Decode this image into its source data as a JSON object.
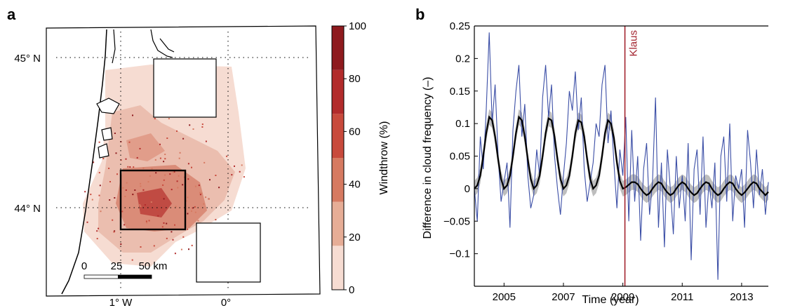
{
  "panel_a": {
    "letter": "a",
    "lat_labels": [
      "45° N",
      "44° N"
    ],
    "lon_labels": [
      "1° W",
      "0°"
    ],
    "scale_labels": [
      "0",
      "25",
      "50 km"
    ],
    "colorbar_ticks": [
      "0",
      "20",
      "40",
      "60",
      "80",
      "100"
    ],
    "colorbar_label": "Windthrow (%)",
    "colorbar_colors": [
      "#f6dcd2",
      "#e6ad96",
      "#d67a61",
      "#c84a3c",
      "#b22b2b",
      "#8e1a1e"
    ]
  },
  "panel_b": {
    "letter": "b",
    "event_label": "Klaus"
  },
  "chart_data": {
    "type": "line",
    "xlabel": "Time (year)",
    "ylabel": "Difference in cloud frequency (–)",
    "xlim": [
      2004,
      2013.9
    ],
    "ylim": [
      -0.15,
      0.25
    ],
    "xticks": [
      2005,
      2007,
      2009,
      2011,
      2013
    ],
    "xtick_labels": [
      "2005",
      "2007",
      "2009",
      "2011",
      "2013"
    ],
    "yticks": [
      -0.1,
      -0.05,
      0,
      0.05,
      0.1,
      0.15,
      0.2,
      0.25
    ],
    "ytick_labels": [
      "−0.1",
      "−0.05",
      "0",
      "0.05",
      "0.1",
      "0.15",
      "0.2",
      "0.25"
    ],
    "event": {
      "x": 2009.07,
      "label": "Klaus",
      "color": "#a3242f"
    },
    "series": [
      {
        "color": "#3b4ea6",
        "kind": "observed",
        "x": [
          2004.0,
          2004.1,
          2004.2,
          2004.3,
          2004.4,
          2004.5,
          2004.6,
          2004.7,
          2004.8,
          2004.9,
          2005.0,
          2005.1,
          2005.2,
          2005.3,
          2005.4,
          2005.5,
          2005.6,
          2005.7,
          2005.8,
          2005.9,
          2006.0,
          2006.1,
          2006.2,
          2006.3,
          2006.4,
          2006.5,
          2006.6,
          2006.7,
          2006.8,
          2006.9,
          2007.0,
          2007.1,
          2007.2,
          2007.3,
          2007.4,
          2007.5,
          2007.6,
          2007.7,
          2007.8,
          2007.9,
          2008.0,
          2008.1,
          2008.2,
          2008.3,
          2008.4,
          2008.5,
          2008.6,
          2008.7,
          2008.8,
          2008.9,
          2009.0,
          2009.1,
          2009.2,
          2009.3,
          2009.4,
          2009.5,
          2009.6,
          2009.7,
          2009.8,
          2009.9,
          2010.0,
          2010.1,
          2010.2,
          2010.3,
          2010.4,
          2010.5,
          2010.6,
          2010.7,
          2010.8,
          2010.9,
          2011.0,
          2011.1,
          2011.2,
          2011.3,
          2011.4,
          2011.5,
          2011.6,
          2011.7,
          2011.8,
          2011.9,
          2012.0,
          2012.1,
          2012.2,
          2012.3,
          2012.4,
          2012.5,
          2012.6,
          2012.7,
          2012.8,
          2012.9,
          2013.0,
          2013.1,
          2013.2,
          2013.3,
          2013.4,
          2013.5,
          2013.6,
          2013.7,
          2013.8,
          2013.9
        ],
        "y": [
          0.0,
          -0.05,
          0.08,
          0.03,
          0.12,
          0.24,
          0.1,
          0.16,
          0.05,
          -0.02,
          0.01,
          0.04,
          -0.06,
          0.09,
          0.15,
          0.19,
          0.08,
          0.13,
          0.02,
          -0.03,
          -0.01,
          0.06,
          0.02,
          0.14,
          0.19,
          0.11,
          0.16,
          0.05,
          0.0,
          -0.04,
          0.02,
          0.07,
          0.15,
          0.12,
          0.18,
          0.09,
          0.14,
          0.03,
          -0.02,
          0.01,
          0.04,
          0.1,
          0.08,
          0.16,
          0.19,
          0.07,
          0.12,
          0.04,
          -0.03,
          0.06,
          0.02,
          0.11,
          -0.05,
          0.09,
          -0.02,
          0.05,
          -0.08,
          0.03,
          0.07,
          -0.04,
          0.01,
          0.14,
          -0.06,
          0.04,
          -0.09,
          0.06,
          0.0,
          -0.07,
          0.05,
          -0.03,
          0.02,
          -0.05,
          0.07,
          -0.11,
          0.03,
          0.06,
          -0.04,
          0.08,
          -0.06,
          0.01,
          -0.03,
          0.04,
          -0.14,
          0.05,
          0.08,
          -0.02,
          0.1,
          -0.05,
          0.02,
          0.0,
          0.03,
          -0.06,
          0.09,
          0.04,
          -0.03,
          0.06,
          -0.01,
          0.03,
          -0.04,
          0.01
        ]
      },
      {
        "color": "#000000",
        "kind": "fit",
        "x": [
          2004.0,
          2004.1,
          2004.2,
          2004.3,
          2004.4,
          2004.5,
          2004.6,
          2004.7,
          2004.8,
          2004.9,
          2005.0,
          2005.1,
          2005.2,
          2005.3,
          2005.4,
          2005.5,
          2005.6,
          2005.7,
          2005.8,
          2005.9,
          2006.0,
          2006.1,
          2006.2,
          2006.3,
          2006.4,
          2006.5,
          2006.6,
          2006.7,
          2006.8,
          2006.9,
          2007.0,
          2007.1,
          2007.2,
          2007.3,
          2007.4,
          2007.5,
          2007.6,
          2007.7,
          2007.8,
          2007.9,
          2008.0,
          2008.1,
          2008.2,
          2008.3,
          2008.4,
          2008.5,
          2008.6,
          2008.7,
          2008.8,
          2008.9,
          2009.0,
          2009.1,
          2009.2,
          2009.3,
          2009.4,
          2009.5,
          2009.6,
          2009.7,
          2009.8,
          2009.9,
          2010.0,
          2010.1,
          2010.2,
          2010.3,
          2010.4,
          2010.5,
          2010.6,
          2010.7,
          2010.8,
          2010.9,
          2011.0,
          2011.1,
          2011.2,
          2011.3,
          2011.4,
          2011.5,
          2011.6,
          2011.7,
          2011.8,
          2011.9,
          2012.0,
          2012.1,
          2012.2,
          2012.3,
          2012.4,
          2012.5,
          2012.6,
          2012.7,
          2012.8,
          2012.9,
          2013.0,
          2013.1,
          2013.2,
          2013.3,
          2013.4,
          2013.5,
          2013.6,
          2013.7,
          2013.8,
          2013.9
        ],
        "y": [
          0.0,
          0.005,
          0.02,
          0.05,
          0.085,
          0.11,
          0.105,
          0.08,
          0.045,
          0.015,
          0.0,
          0.005,
          0.02,
          0.05,
          0.085,
          0.11,
          0.105,
          0.08,
          0.045,
          0.015,
          0.0,
          0.005,
          0.02,
          0.05,
          0.085,
          0.108,
          0.105,
          0.08,
          0.045,
          0.015,
          0.0,
          0.005,
          0.02,
          0.05,
          0.085,
          0.105,
          0.102,
          0.08,
          0.045,
          0.015,
          0.0,
          0.005,
          0.02,
          0.05,
          0.085,
          0.105,
          0.1,
          0.078,
          0.04,
          0.012,
          0.0,
          0.002,
          0.006,
          0.01,
          0.01,
          0.007,
          0.0,
          -0.006,
          -0.01,
          -0.007,
          0.0,
          0.006,
          0.01,
          0.008,
          0.0,
          -0.006,
          -0.01,
          -0.007,
          0.0,
          0.006,
          0.01,
          0.007,
          0.0,
          -0.006,
          -0.01,
          -0.007,
          0.0,
          0.006,
          0.01,
          0.008,
          0.0,
          -0.006,
          -0.01,
          -0.007,
          0.0,
          0.006,
          0.01,
          0.008,
          0.0,
          -0.006,
          -0.01,
          -0.006,
          0.0,
          0.006,
          0.01,
          0.008,
          0.0,
          -0.005,
          -0.01,
          -0.005
        ]
      }
    ]
  }
}
